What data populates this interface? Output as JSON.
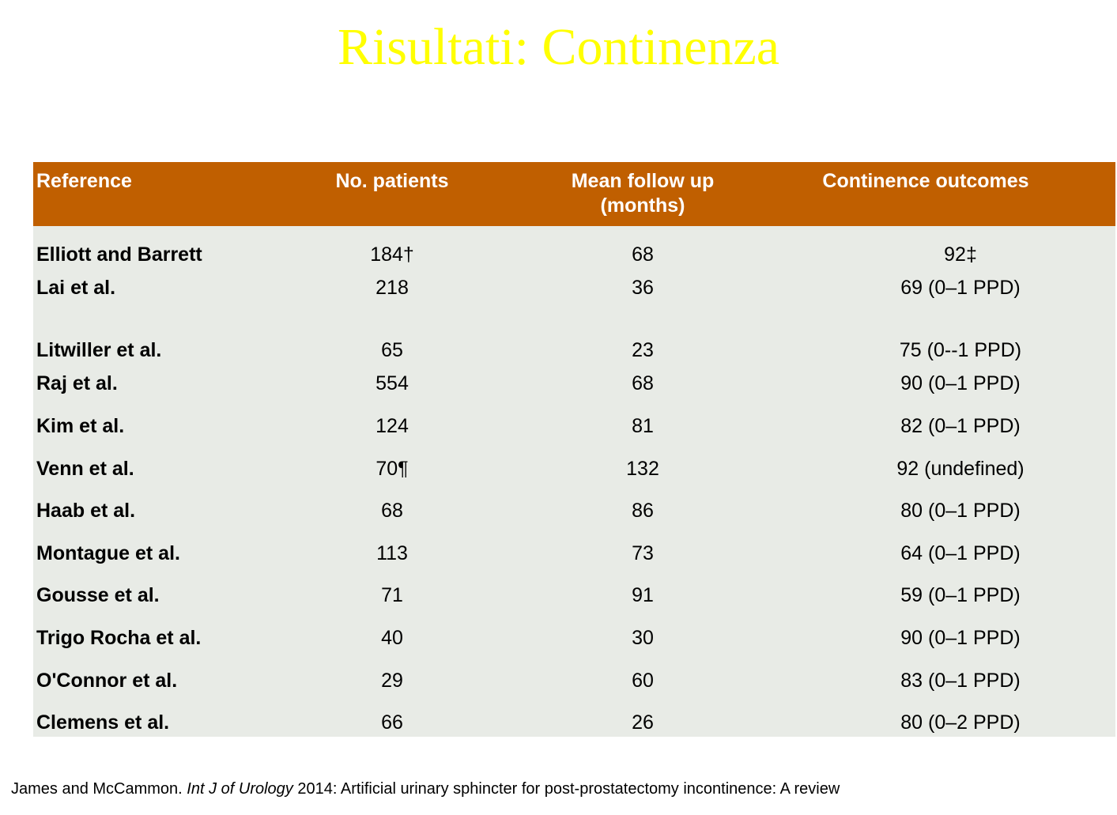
{
  "title": "Risultati: Continenza",
  "table": {
    "headers": [
      "Reference",
      "No. patients",
      "Mean follow up (months)",
      "Continence outcomes"
    ],
    "rows": [
      {
        "reference": "Elliott and Barrett",
        "patients": "184†",
        "follow_up": "68",
        "outcome": "92‡"
      },
      {
        "reference": "Lai et al.",
        "patients": "218",
        "follow_up": "36",
        "outcome": "69 (0–1 PPD)"
      },
      {
        "reference": "Litwiller et al.",
        "patients": "65",
        "follow_up": "23",
        "outcome": "75 (0--1 PPD)"
      },
      {
        "reference": "Raj et al.",
        "patients": "554",
        "follow_up": "68",
        "outcome": "90 (0–1 PPD)"
      },
      {
        "reference": "Kim et al.",
        "patients": "124",
        "follow_up": "81",
        "outcome": "82 (0–1 PPD)"
      },
      {
        "reference": "Venn et al.",
        "patients": "70¶",
        "follow_up": "132",
        "outcome": "92 (undefined)"
      },
      {
        "reference": "Haab et al.",
        "patients": "68",
        "follow_up": "86",
        "outcome": "80 (0–1 PPD)"
      },
      {
        "reference": "Montague et al.",
        "patients": "113",
        "follow_up": "73",
        "outcome": "64 (0–1 PPD)"
      },
      {
        "reference": "Gousse et al.",
        "patients": "71",
        "follow_up": "91",
        "outcome": "59 (0–1 PPD)"
      },
      {
        "reference": "Trigo Rocha et al.",
        "patients": "40",
        "follow_up": "30",
        "outcome": "90 (0–1 PPD)"
      },
      {
        "reference": "O'Connor et al.",
        "patients": "29",
        "follow_up": "60",
        "outcome": "83 (0–1 PPD)"
      },
      {
        "reference": "Clemens et al.",
        "patients": "66",
        "follow_up": "26",
        "outcome": "80 (0–2 PPD)"
      }
    ]
  },
  "citation": {
    "authors": "James and McCammon. ",
    "journal": "Int J of Urology",
    "rest": " 2014: Artificial urinary sphincter for post-prostatectomy incontinence: A review"
  },
  "colors": {
    "title": "#ffff00",
    "header_bg": "#c05f00",
    "body_bg": "#e8ebe6"
  }
}
